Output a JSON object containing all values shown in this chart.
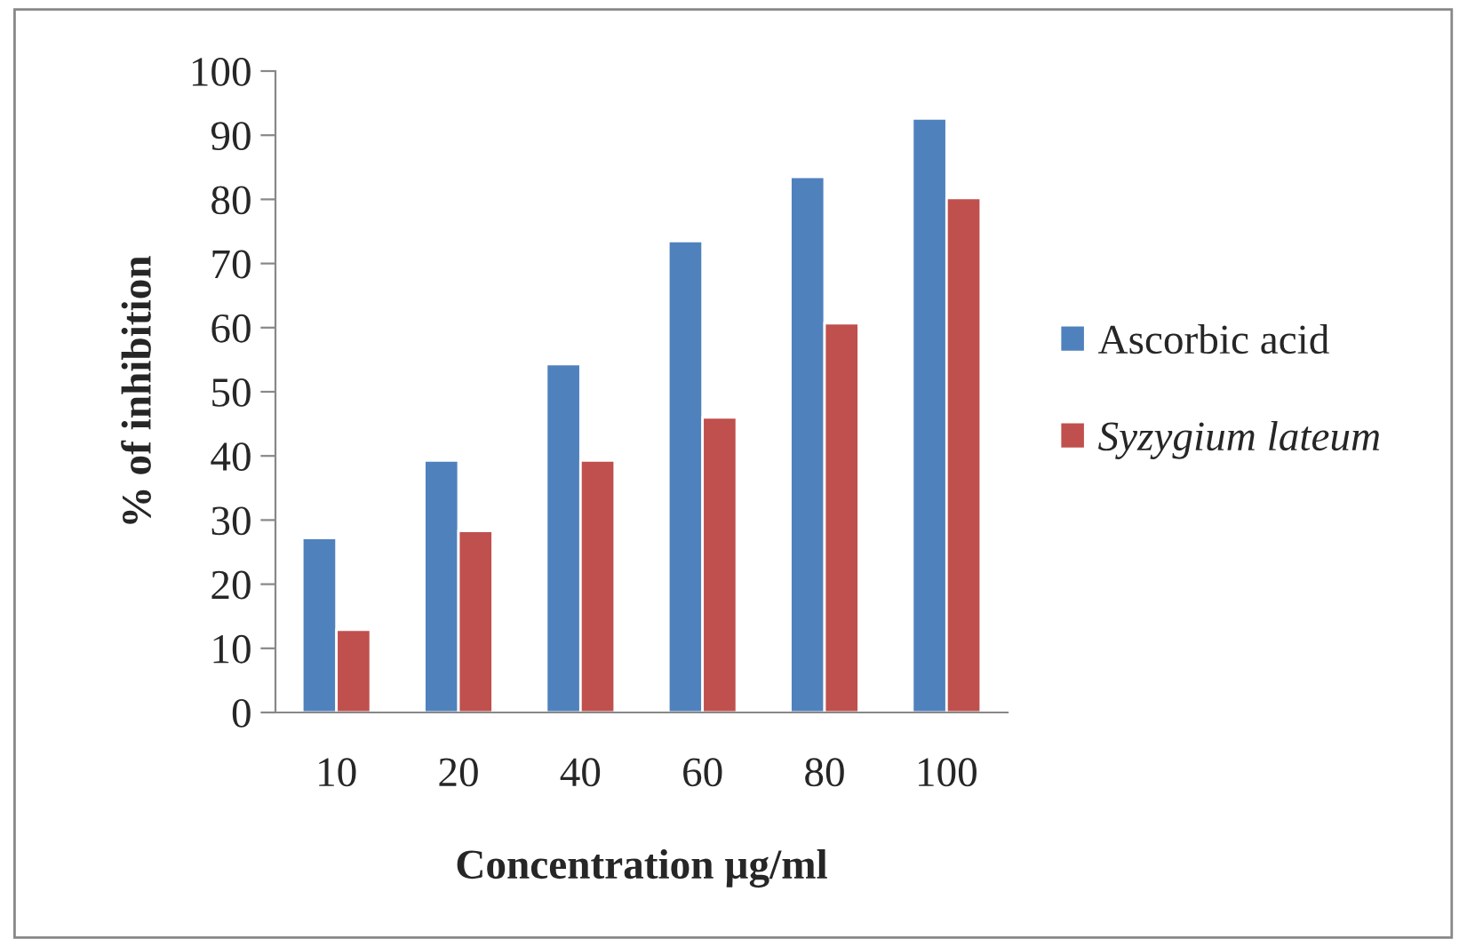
{
  "chart_data": {
    "type": "bar",
    "xlabel": "Concentration µg/ml",
    "ylabel": "% of inhibition",
    "categories": [
      "10",
      "20",
      "40",
      "60",
      "80",
      "100"
    ],
    "series": [
      {
        "name": "Ascorbic acid",
        "color": "#4f81bd",
        "values": [
          27.2,
          39.3,
          54.3,
          73.5,
          83.5,
          92.6
        ]
      },
      {
        "name": "Syzygium lateum",
        "color": "#c0504d",
        "values": [
          12.9,
          28.3,
          39.3,
          46.0,
          60.7,
          80.2
        ]
      }
    ],
    "ylim": [
      0,
      100
    ],
    "yticks": [
      0,
      10,
      20,
      30,
      40,
      50,
      60,
      70,
      80,
      90,
      100
    ],
    "grid": false,
    "legend": "right"
  }
}
